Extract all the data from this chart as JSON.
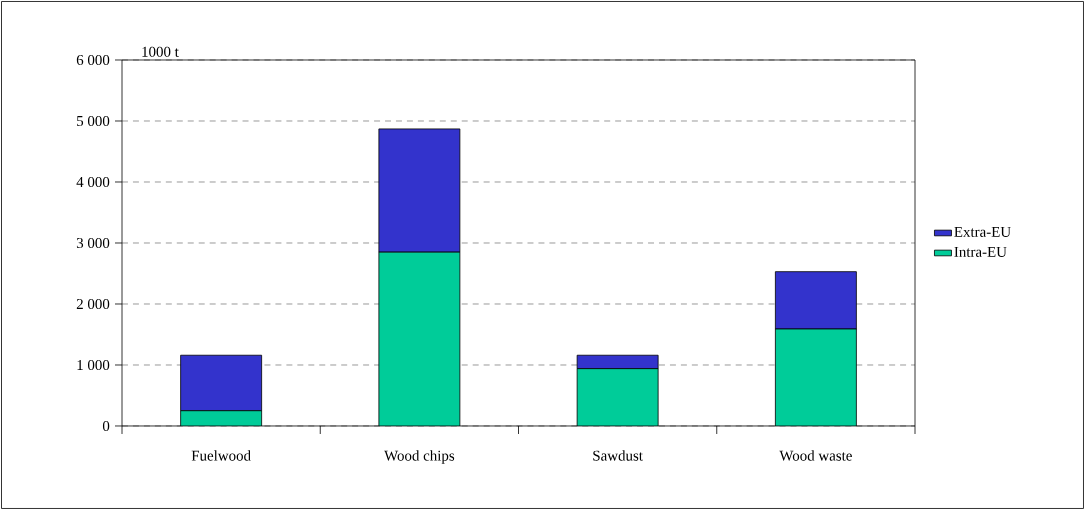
{
  "chart_data": {
    "type": "bar",
    "stacked": true,
    "ylabel": "1000 t",
    "categories": [
      "Fuelwood",
      "Wood chips",
      "Sawdust",
      "Wood waste"
    ],
    "series": [
      {
        "name": "Intra-EU",
        "color": "#00cc99",
        "values": [
          250,
          2850,
          940,
          1590
        ]
      },
      {
        "name": "Extra-EU",
        "color": "#3333cc",
        "values": [
          910,
          2020,
          220,
          940
        ]
      }
    ],
    "ylim": [
      0,
      6000
    ],
    "yticks": [
      0,
      {
        "value": 1000,
        "label": "1 000"
      },
      {
        "value": 2000,
        "label": "2 000"
      },
      {
        "value": 3000,
        "label": "3 000"
      },
      {
        "value": 4000,
        "label": "4 000"
      },
      {
        "value": 5000,
        "label": "5 000"
      },
      {
        "value": 6000,
        "label": "6 000"
      }
    ],
    "grid": "y",
    "legend": "right"
  }
}
